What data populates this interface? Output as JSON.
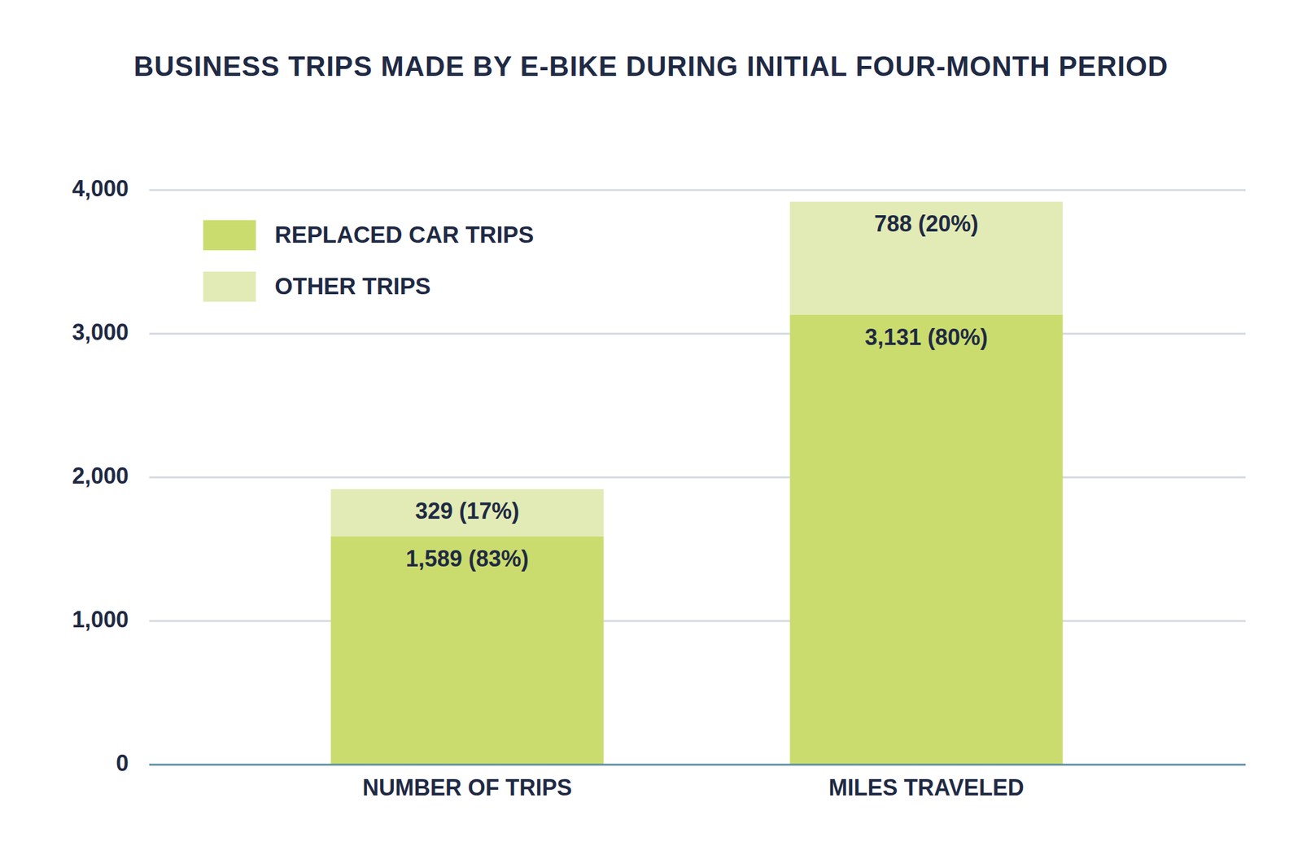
{
  "chart_data": {
    "type": "bar",
    "title": "BUSINESS TRIPS MADE BY E-BIKE DURING INITIAL FOUR-MONTH PERIOD",
    "categories": [
      "NUMBER OF TRIPS",
      "MILES TRAVELED"
    ],
    "series": [
      {
        "name": "REPLACED CAR TRIPS",
        "color": "#cbdc6e",
        "values": [
          1589,
          3131
        ],
        "value_labels": [
          "1,589 (83%)",
          "3,131 (80%)"
        ]
      },
      {
        "name": "OTHER TRIPS",
        "color": "#e2ebb6",
        "values": [
          329,
          788
        ],
        "value_labels": [
          "329 (17%)",
          "788 (20%)"
        ]
      }
    ],
    "ylim": [
      0,
      4000
    ],
    "yticks": [
      0,
      {
        "value": 1000,
        "label": "1,000"
      },
      {
        "value": 2000,
        "label": "2,000"
      },
      {
        "value": 3000,
        "label": "3,000"
      },
      {
        "value": 4000,
        "label": "4,000"
      }
    ],
    "grid": true,
    "stacked": true,
    "data_labels": true,
    "legend": "upper left"
  }
}
